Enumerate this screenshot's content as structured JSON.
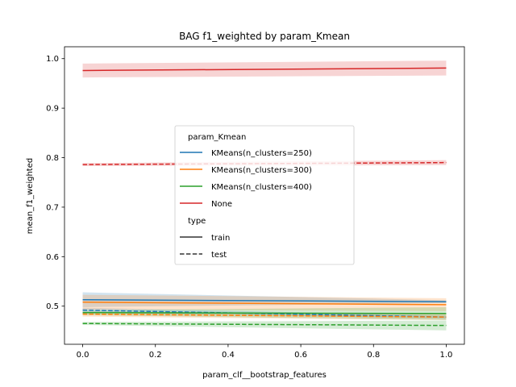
{
  "chart_data": {
    "type": "line",
    "title": "BAG f1_weighted by param_Kmean",
    "xlabel": "param_clf__bootstrap_features",
    "ylabel": "mean_f1_weighted",
    "xlim": [
      -0.05,
      1.05
    ],
    "ylim": [
      0.423,
      1.024
    ],
    "xticks": [
      "0.0",
      "0.2",
      "0.4",
      "0.6",
      "0.8",
      "1.0"
    ],
    "yticks": [
      "0.5",
      "0.6",
      "0.7",
      "0.8",
      "0.9",
      "1.0"
    ],
    "x": [
      0.0,
      1.0
    ],
    "series": [
      {
        "name": "KMeans(n_clusters=250)",
        "type": "train",
        "color": "#1f77b4",
        "values": [
          0.513,
          0.509
        ],
        "ci_lower": [
          0.498,
          0.506
        ],
        "ci_upper": [
          0.528,
          0.512
        ]
      },
      {
        "name": "KMeans(n_clusters=250)",
        "type": "test",
        "color": "#1f77b4",
        "values": [
          0.492,
          0.478
        ],
        "ci_lower": [
          0.487,
          0.475
        ],
        "ci_upper": [
          0.497,
          0.481
        ]
      },
      {
        "name": "KMeans(n_clusters=300)",
        "type": "train",
        "color": "#ff7f0e",
        "values": [
          0.508,
          0.503
        ],
        "ci_lower": [
          0.493,
          0.49
        ],
        "ci_upper": [
          0.523,
          0.516
        ]
      },
      {
        "name": "KMeans(n_clusters=300)",
        "type": "test",
        "color": "#ff7f0e",
        "values": [
          0.484,
          0.478
        ],
        "ci_lower": [
          0.479,
          0.472
        ],
        "ci_upper": [
          0.489,
          0.484
        ]
      },
      {
        "name": "KMeans(n_clusters=400)",
        "type": "train",
        "color": "#2ca02c",
        "values": [
          0.487,
          0.485
        ],
        "ci_lower": [
          0.482,
          0.472
        ],
        "ci_upper": [
          0.492,
          0.498
        ]
      },
      {
        "name": "KMeans(n_clusters=400)",
        "type": "test",
        "color": "#2ca02c",
        "values": [
          0.465,
          0.461
        ],
        "ci_lower": [
          0.462,
          0.451
        ],
        "ci_upper": [
          0.468,
          0.471
        ]
      },
      {
        "name": "None",
        "type": "train",
        "color": "#d62728",
        "values": [
          0.976,
          0.981
        ],
        "ci_lower": [
          0.962,
          0.966
        ],
        "ci_upper": [
          0.99,
          0.996
        ]
      },
      {
        "name": "None",
        "type": "test",
        "color": "#d62728",
        "values": [
          0.786,
          0.79
        ],
        "ci_lower": [
          0.783,
          0.785
        ],
        "ci_upper": [
          0.789,
          0.795
        ]
      }
    ],
    "legend": {
      "placement": "center",
      "hue_title": "param_Kmean",
      "hue_entries": [
        {
          "label": "KMeans(n_clusters=250)",
          "color": "#1f77b4"
        },
        {
          "label": "KMeans(n_clusters=300)",
          "color": "#ff7f0e"
        },
        {
          "label": "KMeans(n_clusters=400)",
          "color": "#2ca02c"
        },
        {
          "label": "None",
          "color": "#d62728"
        }
      ],
      "style_title": "type",
      "style_entries": [
        {
          "label": "train",
          "dash": "solid"
        },
        {
          "label": "test",
          "dash": "dashed"
        }
      ]
    },
    "grid": false
  }
}
